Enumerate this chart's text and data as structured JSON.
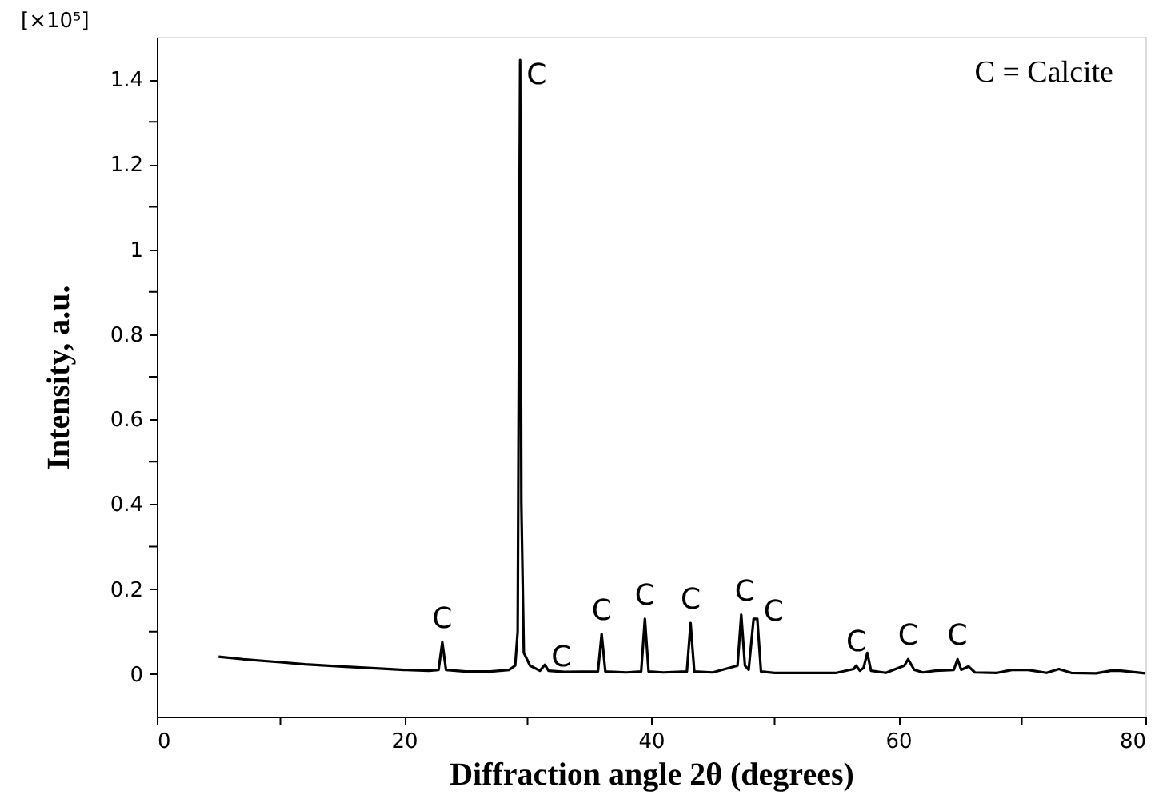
{
  "chart_data": {
    "type": "line",
    "xlabel": "Diffraction angle 2θ (degrees)",
    "ylabel": "Intensity, a.u.",
    "x": [
      5,
      7,
      10,
      12,
      15,
      18,
      20,
      22,
      22.8,
      23.1,
      23.4,
      25,
      27,
      28.5,
      29.0,
      29.2,
      29.35,
      29.4,
      29.5,
      29.7,
      30.2,
      31.0,
      31.4,
      31.7,
      33,
      35.7,
      36.0,
      36.3,
      38,
      39.2,
      39.5,
      39.8,
      41,
      42.9,
      43.2,
      43.5,
      45,
      47.0,
      47.3,
      47.6,
      47.9,
      48.3,
      48.6,
      48.9,
      50,
      52,
      55,
      56.4,
      56.6,
      56.9,
      57.2,
      57.5,
      57.8,
      59,
      60.5,
      60.8,
      61.3,
      62,
      63,
      64.5,
      64.8,
      65.1,
      65.7,
      66.2,
      68,
      69.2,
      70.5,
      72,
      73,
      74,
      76,
      77.2,
      78,
      80
    ],
    "series": [
      {
        "color": "#000000",
        "values": [
          0.041,
          0.035,
          0.028,
          0.023,
          0.018,
          0.013,
          0.01,
          0.008,
          0.01,
          0.075,
          0.01,
          0.006,
          0.006,
          0.01,
          0.02,
          0.1,
          1.12,
          1.445,
          0.4,
          0.05,
          0.02,
          0.008,
          0.022,
          0.008,
          0.005,
          0.006,
          0.094,
          0.006,
          0.004,
          0.006,
          0.13,
          0.006,
          0.004,
          0.006,
          0.12,
          0.006,
          0.004,
          0.02,
          0.14,
          0.02,
          0.01,
          0.13,
          0.13,
          0.006,
          0.003,
          0.003,
          0.003,
          0.012,
          0.02,
          0.008,
          0.015,
          0.05,
          0.008,
          0.003,
          0.02,
          0.035,
          0.01,
          0.004,
          0.008,
          0.01,
          0.035,
          0.01,
          0.018,
          0.004,
          0.003,
          0.01,
          0.01,
          0.003,
          0.012,
          0.003,
          0.002,
          0.008,
          0.008,
          0.002
        ]
      }
    ],
    "xlim": [
      0,
      80
    ],
    "xticks": [
      0,
      {
        "value": 10,
        "label": null
      },
      20,
      {
        "value": 30,
        "label": null
      },
      40,
      {
        "value": 50,
        "label": null
      },
      60,
      {
        "value": 70,
        "label": null
      },
      80
    ],
    "ylim": [
      -0.1,
      1.5
    ],
    "yticks": [
      0,
      {
        "value": 0.1,
        "label": null
      },
      0.2,
      {
        "value": 0.3,
        "label": null
      },
      0.4,
      {
        "value": 0.5,
        "label": null
      },
      0.6,
      {
        "value": 0.7,
        "label": null
      },
      0.8,
      {
        "value": 0.9,
        "label": null
      },
      1,
      {
        "value": 1.1,
        "label": null
      },
      1.2,
      {
        "value": 1.3,
        "label": null
      },
      1.4
    ],
    "grid": false,
    "marker": "none",
    "line_style": "solid",
    "annotations": [
      "[×10⁵]",
      "C = Calcite",
      {
        "text": "C",
        "x": 23.1,
        "y": 0.075
      },
      {
        "text": "C",
        "x": 29.4,
        "y": 1.445
      },
      {
        "text": "C",
        "x": 31.4,
        "y": 0.022
      },
      {
        "text": "C",
        "x": 36.0,
        "y": 0.094
      },
      {
        "text": "C",
        "x": 39.5,
        "y": 0.13
      },
      {
        "text": "C",
        "x": 43.2,
        "y": 0.12
      },
      {
        "text": "C",
        "x": 47.6,
        "y": 0.14
      },
      {
        "text": "C",
        "x": 48.6,
        "y": 0.13
      },
      {
        "text": "C",
        "x": 56.6,
        "y": 0.02
      },
      {
        "text": "C",
        "x": 60.8,
        "y": 0.035
      },
      {
        "text": "C",
        "x": 64.8,
        "y": 0.035
      }
    ]
  }
}
